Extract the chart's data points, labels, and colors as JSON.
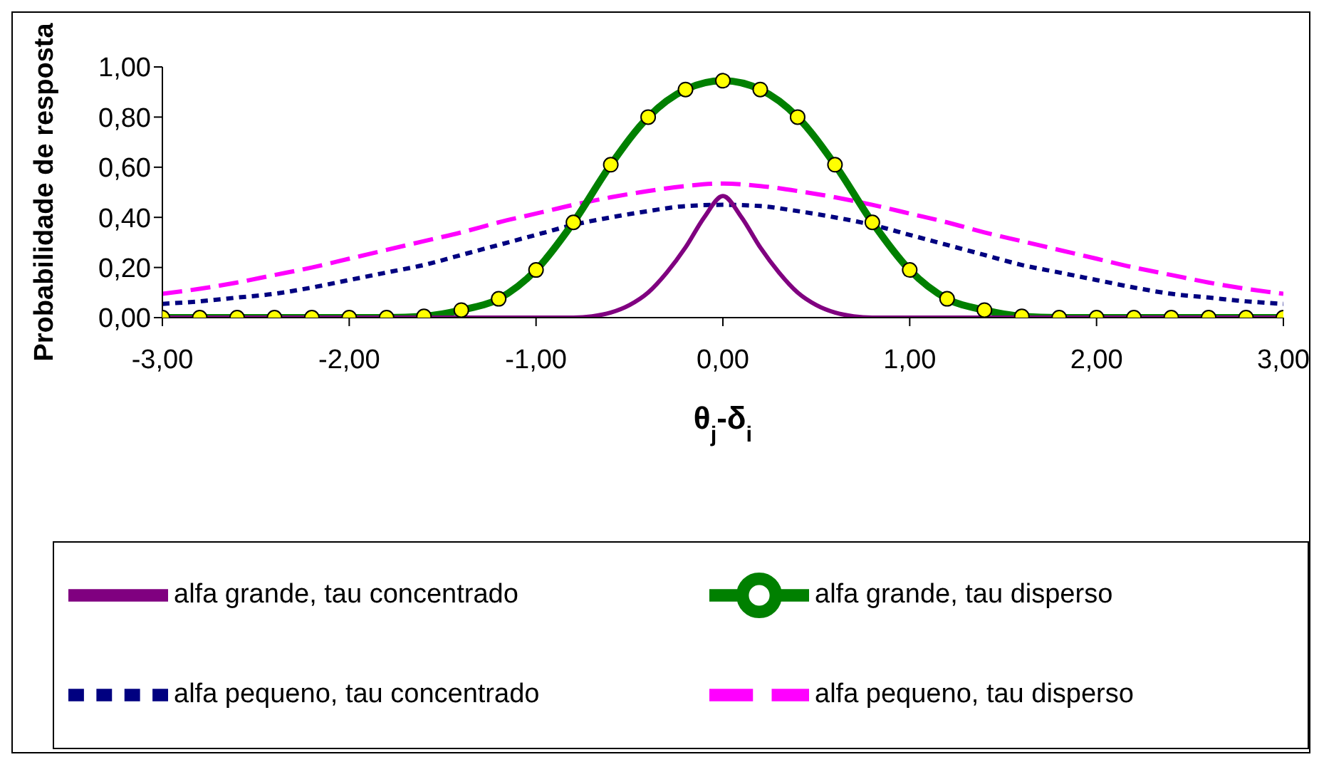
{
  "chart_data": {
    "type": "line",
    "xlabel": "θ$_{j}$-δ$_{i}$",
    "ylabel": "Probabilidade de resposta",
    "xlim": [
      -3,
      3
    ],
    "xticks": [
      {
        "value": -3,
        "label": "-3,00"
      },
      {
        "value": -2,
        "label": "-2,00"
      },
      {
        "value": -1,
        "label": "-1,00"
      },
      {
        "value": 0,
        "label": "0,00"
      },
      {
        "value": 1,
        "label": "1,00"
      },
      {
        "value": 2,
        "label": "2,00"
      },
      {
        "value": 3,
        "label": "3,00"
      }
    ],
    "ylim": [
      0,
      1
    ],
    "yticks": [
      {
        "value": 0,
        "label": "0,00"
      },
      {
        "value": 0.2,
        "label": "0,20"
      },
      {
        "value": 0.4,
        "label": "0,40"
      },
      {
        "value": 0.6,
        "label": "0,60"
      },
      {
        "value": 0.8,
        "label": "0,80"
      },
      {
        "value": 1,
        "label": "1,00"
      }
    ],
    "grid": false,
    "legend": "bottom",
    "x": [
      -3,
      -2.8,
      -2.6,
      -2.4,
      -2.2,
      -2,
      -1.8,
      -1.6,
      -1.4,
      -1.2,
      -1,
      -0.8,
      -0.6,
      -0.4,
      -0.2,
      0,
      0.2,
      0.4,
      0.6,
      0.8,
      1,
      1.2,
      1.4,
      1.6,
      1.8,
      2,
      2.2,
      2.4,
      2.6,
      2.8,
      3
    ],
    "series": [
      {
        "name": "alfa pequeno, tau concentrado",
        "color": "#000080",
        "line_style": "dotted",
        "marker": "none",
        "values": [
          0.055,
          0.065,
          0.08,
          0.095,
          0.12,
          0.15,
          0.18,
          0.21,
          0.25,
          0.29,
          0.33,
          0.37,
          0.4,
          0.425,
          0.445,
          0.45,
          0.445,
          0.425,
          0.4,
          0.37,
          0.33,
          0.29,
          0.25,
          0.21,
          0.18,
          0.15,
          0.12,
          0.095,
          0.08,
          0.065,
          0.055
        ]
      },
      {
        "name": "alfa pequeno, tau disperso",
        "color": "#ff00ff",
        "line_style": "dashed",
        "marker": "none",
        "values": [
          0.095,
          0.115,
          0.14,
          0.17,
          0.2,
          0.235,
          0.27,
          0.305,
          0.34,
          0.38,
          0.415,
          0.45,
          0.48,
          0.505,
          0.525,
          0.535,
          0.525,
          0.505,
          0.48,
          0.45,
          0.415,
          0.38,
          0.34,
          0.305,
          0.27,
          0.235,
          0.2,
          0.17,
          0.14,
          0.115,
          0.095
        ]
      },
      {
        "name": "alfa grande, tau disperso",
        "color": "#008000",
        "line_style": "solid",
        "marker": "circle",
        "values": [
          0,
          0,
          0,
          0,
          0,
          0,
          0,
          0.005,
          0.03,
          0.075,
          0.19,
          0.38,
          0.61,
          0.8,
          0.91,
          0.945,
          0.91,
          0.8,
          0.61,
          0.38,
          0.19,
          0.075,
          0.03,
          0.005,
          0,
          0,
          0,
          0,
          0,
          0,
          0
        ]
      },
      {
        "name": "alfa grande, tau concentrado",
        "color": "#800080",
        "line_style": "solid",
        "marker": "none",
        "x": [
          -3,
          -0.8,
          -0.7,
          -0.6,
          -0.5,
          -0.4,
          -0.3,
          -0.2,
          -0.1,
          0,
          0.1,
          0.2,
          0.3,
          0.4,
          0.5,
          0.6,
          0.7,
          0.8,
          3
        ],
        "values": [
          0,
          0,
          0.005,
          0.02,
          0.05,
          0.1,
          0.18,
          0.28,
          0.4,
          0.485,
          0.4,
          0.28,
          0.18,
          0.1,
          0.05,
          0.02,
          0.005,
          0,
          0
        ]
      }
    ]
  }
}
